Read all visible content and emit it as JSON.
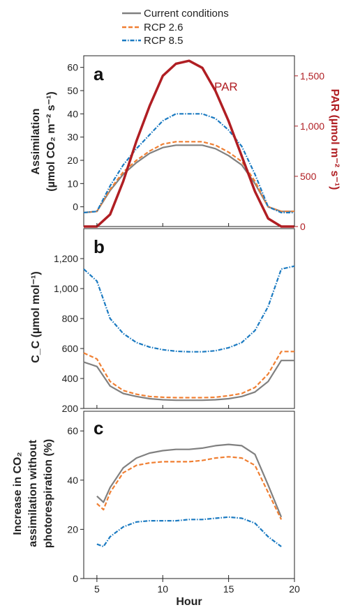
{
  "legend": {
    "items": [
      {
        "label": "Current conditions",
        "color": "#808080",
        "dash": "solid"
      },
      {
        "label": "RCP 2.6",
        "color": "#f07f32",
        "dash": "dashed"
      },
      {
        "label": "RCP 8.5",
        "color": "#1b7ac1",
        "dash": "dashdot"
      }
    ]
  },
  "chart_data": [
    {
      "type": "line",
      "panel": "a",
      "ylabel_line1": "Assimilation",
      "ylabel_line2": "(µmol CO₂ m⁻² s⁻¹)",
      "ylabel_right": "PAR (µmol m⁻² s⁻¹)",
      "annotation": "PAR",
      "xlim": [
        4,
        20
      ],
      "ylim": [
        -8.5,
        65
      ],
      "yticks": [
        0,
        10,
        20,
        30,
        40,
        50,
        60
      ],
      "ytick_labels": [
        "0",
        "10",
        "20",
        "30",
        "40",
        "50",
        "60"
      ],
      "y2lim": [
        0,
        1700
      ],
      "y2ticks": [
        0,
        500,
        1000,
        1500
      ],
      "y2tick_labels": [
        "0",
        "500",
        "1,000",
        "1,500"
      ],
      "x": [
        4,
        5,
        6,
        7,
        8,
        9,
        10,
        11,
        12,
        13,
        14,
        15,
        16,
        17,
        18,
        19,
        20
      ],
      "series": [
        {
          "name": "Current conditions",
          "color": "#808080",
          "dash": "solid",
          "axis": "left",
          "values": [
            -2.5,
            -2,
            7,
            14,
            19,
            23,
            25.5,
            26.5,
            26.5,
            26.5,
            25,
            22,
            18,
            10,
            0,
            -2,
            -2
          ]
        },
        {
          "name": "RCP 2.6",
          "color": "#f07f32",
          "dash": "dashed",
          "axis": "left",
          "values": [
            -2.5,
            -2,
            7.5,
            15,
            20,
            24,
            27,
            28,
            28,
            28,
            26.5,
            23.5,
            19.5,
            11,
            0,
            -2,
            -2
          ]
        },
        {
          "name": "RCP 8.5",
          "color": "#1b7ac1",
          "dash": "dashdot",
          "axis": "left",
          "values": [
            -2.5,
            -2,
            9,
            18,
            25,
            31,
            37,
            40,
            40,
            40,
            38,
            33,
            26,
            14,
            0,
            -2.5,
            -2.5
          ]
        },
        {
          "name": "PAR",
          "color": "#b01e23",
          "dash": "solid",
          "axis": "right",
          "values": [
            0,
            0,
            120,
            450,
            850,
            1200,
            1500,
            1620,
            1650,
            1580,
            1350,
            1050,
            700,
            350,
            80,
            0,
            0
          ]
        }
      ]
    },
    {
      "type": "line",
      "panel": "b",
      "ylabel": "C_C (µmol mol⁻¹)",
      "xlim": [
        4,
        20
      ],
      "ylim": [
        200,
        1400
      ],
      "yticks": [
        200,
        400,
        600,
        800,
        1000,
        1200
      ],
      "ytick_labels": [
        "200",
        "400",
        "600",
        "800",
        "1,000",
        "1,200"
      ],
      "x": [
        4,
        5,
        6,
        7,
        8,
        9,
        10,
        11,
        12,
        13,
        14,
        15,
        16,
        17,
        18,
        19,
        20
      ],
      "series": [
        {
          "name": "Current conditions",
          "color": "#808080",
          "dash": "solid",
          "values": [
            510,
            480,
            350,
            300,
            280,
            265,
            258,
            255,
            255,
            255,
            258,
            265,
            280,
            310,
            380,
            520,
            520
          ]
        },
        {
          "name": "RCP 2.6",
          "color": "#f07f32",
          "dash": "dashed",
          "values": [
            570,
            530,
            380,
            320,
            295,
            280,
            275,
            272,
            272,
            272,
            275,
            285,
            300,
            340,
            430,
            580,
            580
          ]
        },
        {
          "name": "RCP 8.5",
          "color": "#1b7ac1",
          "dash": "dashdot",
          "values": [
            1130,
            1050,
            800,
            700,
            640,
            610,
            592,
            582,
            578,
            578,
            585,
            605,
            640,
            720,
            880,
            1130,
            1150
          ]
        }
      ]
    },
    {
      "type": "line",
      "panel": "c",
      "ylabel_line1": "Increase in CO₂",
      "ylabel_line2": "assimilation without",
      "ylabel_line3": "photorespiration (%)",
      "xlabel": "Hour",
      "xlim": [
        4,
        20
      ],
      "ylim": [
        0,
        68
      ],
      "yticks": [
        0,
        20,
        40,
        60
      ],
      "ytick_labels": [
        "0",
        "20",
        "40",
        "60"
      ],
      "xticks": [
        5,
        10,
        15,
        20
      ],
      "xtick_labels": [
        "5",
        "10",
        "15",
        "20"
      ],
      "x": [
        5,
        5.5,
        6,
        7,
        8,
        9,
        10,
        11,
        12,
        13,
        14,
        15,
        16,
        17,
        18,
        19
      ],
      "series": [
        {
          "name": "Current conditions",
          "color": "#808080",
          "dash": "solid",
          "values": [
            33.5,
            31,
            37,
            45,
            49,
            51,
            52,
            52.5,
            52.5,
            53,
            54,
            54.5,
            54,
            50.5,
            38,
            25
          ]
        },
        {
          "name": "RCP 2.6",
          "color": "#f07f32",
          "dash": "dashed",
          "values": [
            30.5,
            28,
            35,
            43,
            46,
            47,
            47.5,
            47.5,
            47.5,
            48,
            49,
            49.5,
            49,
            46,
            35,
            24
          ]
        },
        {
          "name": "RCP 8.5",
          "color": "#1b7ac1",
          "dash": "dashdot",
          "values": [
            14,
            13,
            17,
            21,
            23,
            23.5,
            23.5,
            23.5,
            24,
            24,
            24.5,
            25,
            24.5,
            22.5,
            17,
            13
          ]
        }
      ]
    }
  ]
}
